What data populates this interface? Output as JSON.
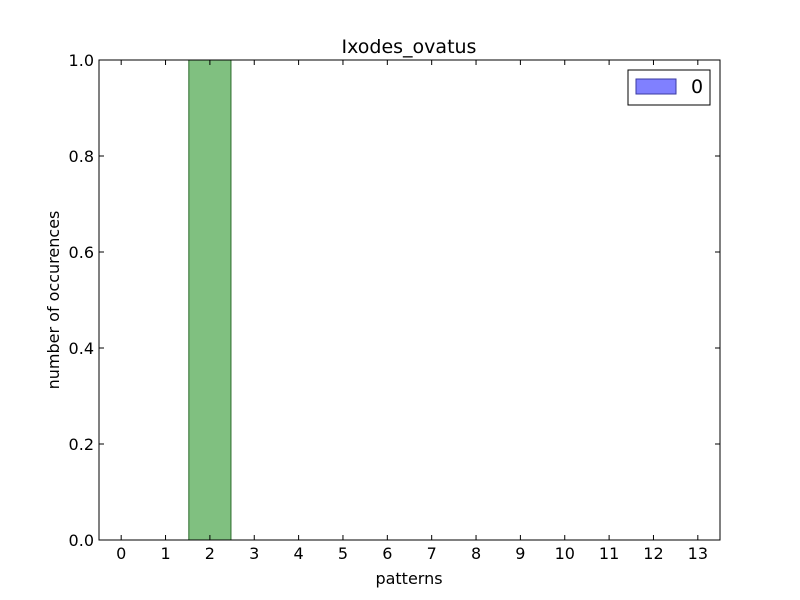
{
  "chart_data": {
    "type": "bar",
    "title": "Ixodes_ovatus",
    "xlabel": "patterns",
    "ylabel": "number of occurences",
    "categories": [
      "0",
      "1",
      "2",
      "3",
      "4",
      "5",
      "6",
      "7",
      "8",
      "9",
      "10",
      "11",
      "12",
      "13"
    ],
    "x": [
      0,
      1,
      2,
      3,
      4,
      5,
      6,
      7,
      8,
      9,
      10,
      11,
      12,
      13
    ],
    "xlim": [
      -0.5,
      13.5
    ],
    "ylim": [
      0,
      1.0
    ],
    "yticks": [
      0.0,
      0.2,
      0.4,
      0.6,
      0.8,
      1.0
    ],
    "ytick_labels": [
      "0.0",
      "0.2",
      "0.4",
      "0.6",
      "0.8",
      "1.0"
    ],
    "series": [
      {
        "name": "0",
        "values": [
          0,
          0,
          1.0,
          0,
          0,
          0,
          0,
          0,
          0,
          0,
          0,
          0,
          0,
          0
        ]
      }
    ],
    "bar_color": "#80c080",
    "bar_edge_color": "#2a6a2a",
    "legend": {
      "entries": [
        {
          "label": "0",
          "color": "#8080ff",
          "edge": "#3a3aa0"
        }
      ],
      "placement": "top-right"
    },
    "grid": false
  }
}
